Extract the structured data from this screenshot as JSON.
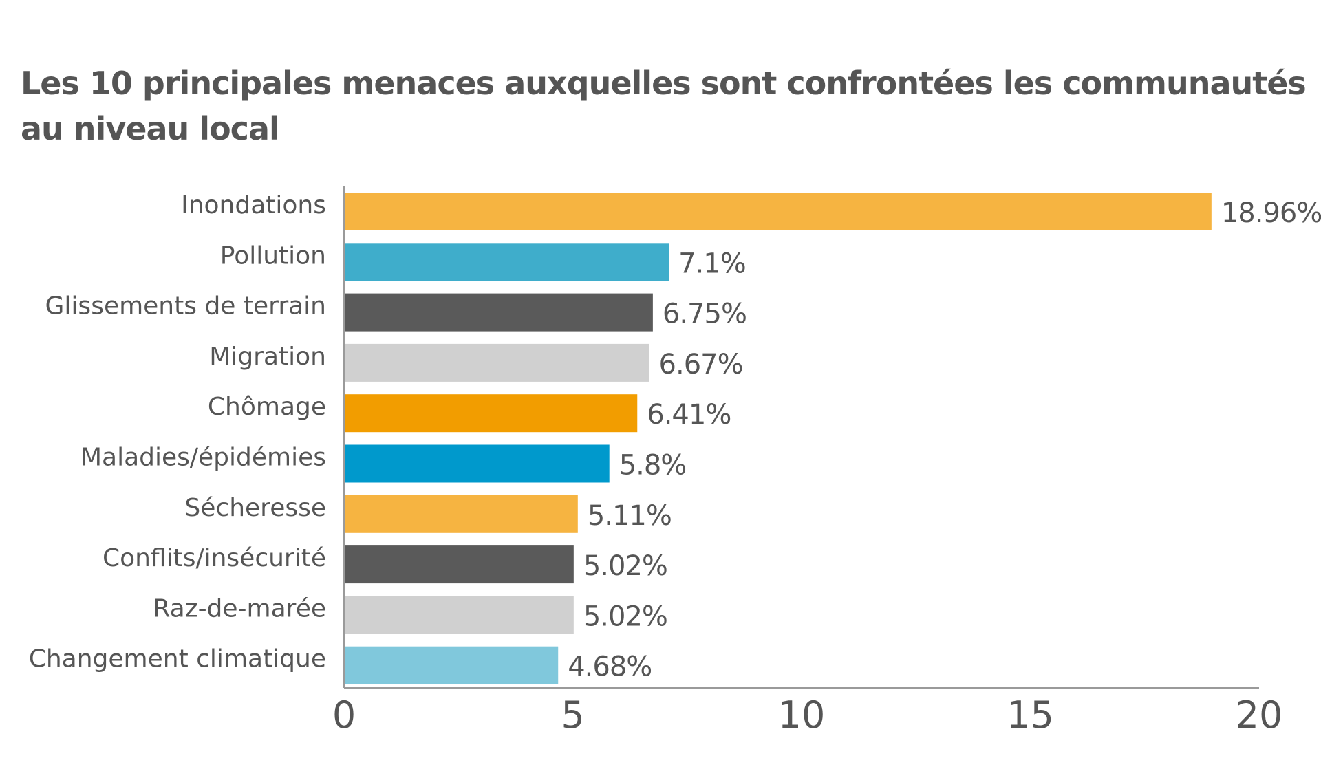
{
  "chart_data": {
    "type": "bar",
    "orientation": "horizontal",
    "title": "Les 10 principales menaces auxquelles sont confrontées les communautés au niveau local",
    "categories": [
      "Inondations",
      "Pollution",
      "Glissements de terrain",
      "Migration",
      "Chômage",
      "Maladies/épidémies",
      "Sécheresse",
      "Conflits/insécurité",
      "Raz-de-marée",
      "Changement climatique"
    ],
    "values": [
      18.96,
      7.1,
      6.75,
      6.67,
      6.41,
      5.8,
      5.11,
      5.02,
      5.02,
      4.68
    ],
    "value_labels": [
      "18.96%",
      "7.1%",
      "6.75%",
      "6.67%",
      "6.41%",
      "5.8%",
      "5.11%",
      "5.02%",
      "5.02%",
      "4.68%"
    ],
    "colors": [
      "#F6B441",
      "#3FADCB",
      "#5A5A5A",
      "#D0D0D0",
      "#F29D00",
      "#0099CC",
      "#F6B441",
      "#5A5A5A",
      "#D0D0D0",
      "#80C8DC"
    ],
    "xlim": [
      0,
      20
    ],
    "x_ticks": [
      0,
      5,
      10,
      15,
      20
    ],
    "x_tick_labels": [
      "0",
      "5",
      "10",
      "15",
      "20"
    ],
    "grid": false,
    "legend": "none"
  }
}
